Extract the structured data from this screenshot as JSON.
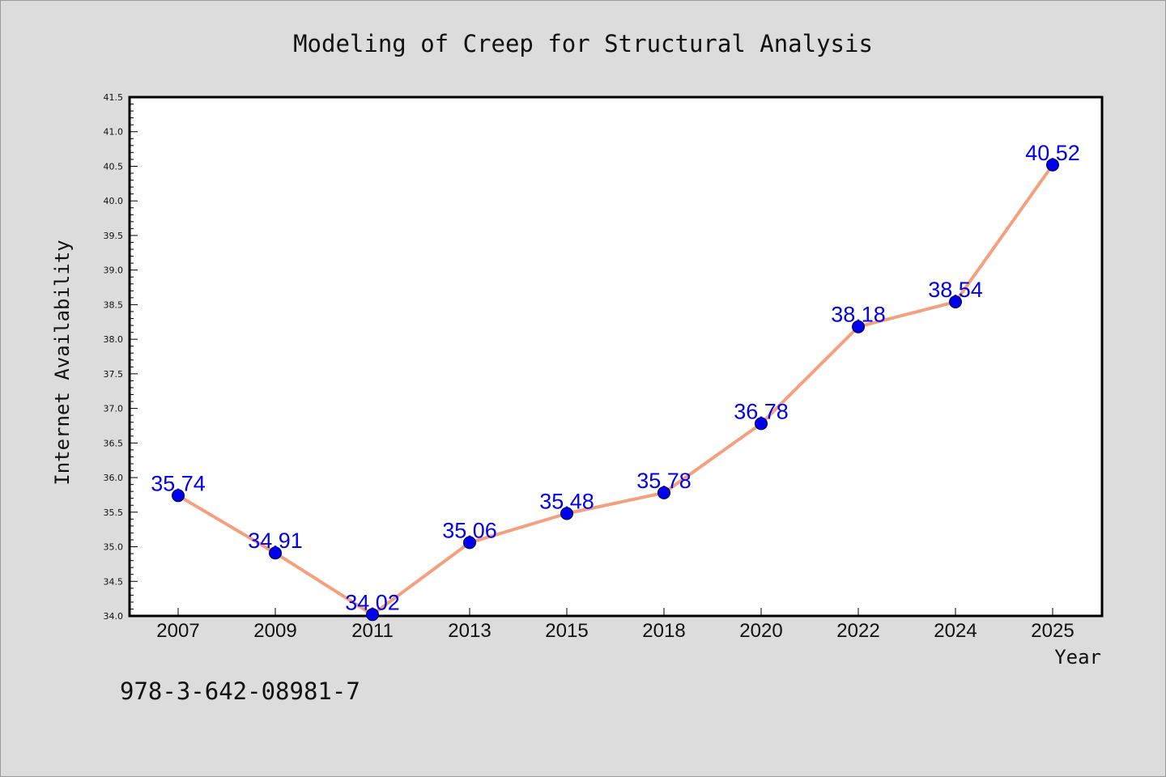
{
  "chart_data": {
    "type": "line",
    "title": "Modeling of Creep for Structural Analysis",
    "xlabel": "Year",
    "ylabel": "Internet Availability",
    "categories": [
      "2007",
      "2009",
      "2011",
      "2013",
      "2015",
      "2018",
      "2020",
      "2022",
      "2024",
      "2025"
    ],
    "series": [
      {
        "values": [
          35.74,
          34.91,
          34.02,
          35.06,
          35.48,
          35.78,
          36.78,
          38.18,
          38.54,
          40.52
        ],
        "labels": [
          "35.74",
          "34.91",
          "34.02",
          "35.06",
          "35.48",
          "35.78",
          "36.78",
          "38.18",
          "38.54",
          "40.52"
        ],
        "line_color": "#f4a07e",
        "marker_color": "#0000ee"
      }
    ],
    "ylim": [
      34.0,
      41.5
    ],
    "yticks": [
      "34.0",
      "34.5",
      "35.0",
      "35.5",
      "36.0",
      "36.5",
      "37.0",
      "37.5",
      "38.0",
      "38.5",
      "39.0",
      "39.5",
      "40.0",
      "40.5",
      "41.0",
      "41.5"
    ],
    "grid": false,
    "legend": "none"
  },
  "annotation": "978-3-642-08981-7",
  "colors": {
    "background": "#dcdcdc",
    "plot_background": "#ffffff",
    "axis": "#000000"
  }
}
